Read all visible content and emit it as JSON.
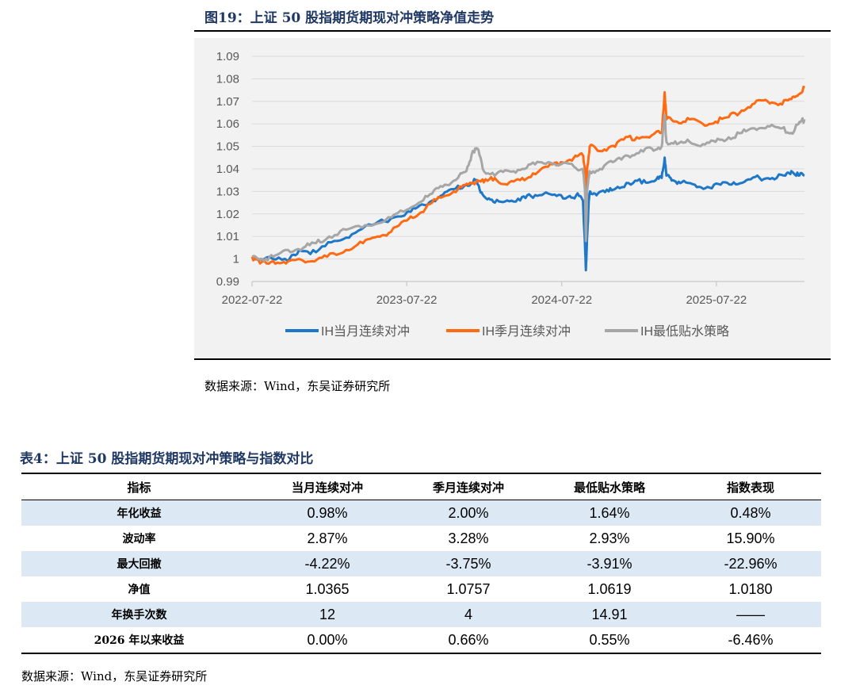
{
  "figure": {
    "title": "图19：上证 50 股指期货期现对冲策略净值走势",
    "source": "数据来源：Wind，东吴证券研究所"
  },
  "chart_data": {
    "type": "line",
    "x_ticks": [
      "2022-07-22",
      "2023-07-22",
      "2024-07-22",
      "2025-07-22"
    ],
    "x_range": [
      "2022-07-22",
      "2026-02-15"
    ],
    "y_ticks": [
      "0.99",
      "1",
      "1.01",
      "1.02",
      "1.03",
      "1.04",
      "1.05",
      "1.06",
      "1.07",
      "1.08",
      "1.09"
    ],
    "ylim": [
      0.99,
      1.09
    ],
    "grid": true,
    "legend_position": "bottom",
    "series": [
      {
        "name": "IH当月连续对冲",
        "color": "#1f77c8",
        "points": [
          [
            "2022-07-22",
            1.0
          ],
          [
            "2022-09-01",
            1.001
          ],
          [
            "2022-10-15",
            0.999
          ],
          [
            "2022-11-10",
            1.004
          ],
          [
            "2022-12-20",
            1.003
          ],
          [
            "2023-02-01",
            1.008
          ],
          [
            "2023-03-15",
            1.011
          ],
          [
            "2023-05-01",
            1.015
          ],
          [
            "2023-06-15",
            1.018
          ],
          [
            "2023-08-01",
            1.021
          ],
          [
            "2023-09-01",
            1.024
          ],
          [
            "2023-10-10",
            1.028
          ],
          [
            "2023-11-10",
            1.031
          ],
          [
            "2023-12-10",
            1.033
          ],
          [
            "2024-01-01",
            1.035
          ],
          [
            "2024-01-10",
            1.031
          ],
          [
            "2024-01-25",
            1.027
          ],
          [
            "2024-02-15",
            1.025
          ],
          [
            "2024-03-15",
            1.026
          ],
          [
            "2024-04-15",
            1.026
          ],
          [
            "2024-05-10",
            1.028
          ],
          [
            "2024-06-10",
            1.029
          ],
          [
            "2024-07-10",
            1.028
          ],
          [
            "2024-08-10",
            1.028
          ],
          [
            "2024-09-01",
            1.028
          ],
          [
            "2024-09-10",
            1.026
          ],
          [
            "2024-09-14",
            1.01
          ],
          [
            "2024-09-17",
            0.995
          ],
          [
            "2024-09-20",
            1.01
          ],
          [
            "2024-09-24",
            1.026
          ],
          [
            "2024-09-27",
            1.03
          ],
          [
            "2024-10-15",
            1.029
          ],
          [
            "2024-11-10",
            1.03
          ],
          [
            "2024-12-01",
            1.032
          ],
          [
            "2025-01-01",
            1.033
          ],
          [
            "2025-02-01",
            1.035
          ],
          [
            "2025-03-01",
            1.035
          ],
          [
            "2025-03-15",
            1.036
          ],
          [
            "2025-03-22",
            1.045
          ],
          [
            "2025-03-26",
            1.037
          ],
          [
            "2025-04-10",
            1.035
          ],
          [
            "2025-05-01",
            1.034
          ],
          [
            "2025-06-01",
            1.033
          ],
          [
            "2025-07-01",
            1.032
          ],
          [
            "2025-08-01",
            1.033
          ],
          [
            "2025-09-01",
            1.034
          ],
          [
            "2025-10-01",
            1.035
          ],
          [
            "2025-11-01",
            1.036
          ],
          [
            "2025-12-01",
            1.036
          ],
          [
            "2026-01-01",
            1.037
          ],
          [
            "2026-01-15",
            1.039
          ],
          [
            "2026-02-01",
            1.037
          ],
          [
            "2026-02-15",
            1.037
          ]
        ]
      },
      {
        "name": "IH季月连续对冲",
        "color": "#ff6a13",
        "points": [
          [
            "2022-07-22",
            1.001
          ],
          [
            "2022-08-10",
            0.998
          ],
          [
            "2022-09-10",
            0.999
          ],
          [
            "2022-10-10",
            0.998
          ],
          [
            "2022-11-10",
            1.0
          ],
          [
            "2022-12-10",
            0.999
          ],
          [
            "2023-01-15",
            1.001
          ],
          [
            "2023-03-01",
            1.004
          ],
          [
            "2023-04-10",
            1.007
          ],
          [
            "2023-05-15",
            1.01
          ],
          [
            "2023-06-15",
            1.012
          ],
          [
            "2023-07-22",
            1.017
          ],
          [
            "2023-08-20",
            1.02
          ],
          [
            "2023-09-20",
            1.025
          ],
          [
            "2023-10-20",
            1.028
          ],
          [
            "2023-11-20",
            1.031
          ],
          [
            "2023-12-15",
            1.033
          ],
          [
            "2024-01-05",
            1.035
          ],
          [
            "2024-01-20",
            1.034
          ],
          [
            "2024-02-15",
            1.036
          ],
          [
            "2024-03-15",
            1.033
          ],
          [
            "2024-04-15",
            1.035
          ],
          [
            "2024-05-15",
            1.038
          ],
          [
            "2024-06-20",
            1.041
          ],
          [
            "2024-07-20",
            1.043
          ],
          [
            "2024-08-20",
            1.045
          ],
          [
            "2024-09-10",
            1.046
          ],
          [
            "2024-09-15",
            1.04
          ],
          [
            "2024-09-17",
            1.01
          ],
          [
            "2024-09-20",
            1.04
          ],
          [
            "2024-09-26",
            1.05
          ],
          [
            "2024-10-15",
            1.048
          ],
          [
            "2024-11-15",
            1.05
          ],
          [
            "2024-12-15",
            1.053
          ],
          [
            "2025-01-15",
            1.054
          ],
          [
            "2025-02-20",
            1.055
          ],
          [
            "2025-03-15",
            1.056
          ],
          [
            "2025-03-22",
            1.074
          ],
          [
            "2025-03-26",
            1.062
          ],
          [
            "2025-04-20",
            1.061
          ],
          [
            "2025-05-20",
            1.062
          ],
          [
            "2025-06-20",
            1.06
          ],
          [
            "2025-07-20",
            1.061
          ],
          [
            "2025-08-20",
            1.063
          ],
          [
            "2025-09-20",
            1.066
          ],
          [
            "2025-10-20",
            1.069
          ],
          [
            "2025-11-20",
            1.07
          ],
          [
            "2025-12-20",
            1.069
          ],
          [
            "2026-01-15",
            1.071
          ],
          [
            "2026-02-01",
            1.073
          ],
          [
            "2026-02-15",
            1.076
          ]
        ]
      },
      {
        "name": "IH最低贴水策略",
        "color": "#a6a6a6",
        "points": [
          [
            "2022-07-22",
            1.001
          ],
          [
            "2022-08-15",
            1.0
          ],
          [
            "2022-09-10",
            1.001
          ],
          [
            "2022-10-15",
            1.004
          ],
          [
            "2022-11-20",
            1.005
          ],
          [
            "2022-12-20",
            1.007
          ],
          [
            "2023-01-20",
            1.01
          ],
          [
            "2023-03-01",
            1.013
          ],
          [
            "2023-04-15",
            1.015
          ],
          [
            "2023-06-01",
            1.017
          ],
          [
            "2023-07-15",
            1.021
          ],
          [
            "2023-08-20",
            1.025
          ],
          [
            "2023-09-20",
            1.029
          ],
          [
            "2023-10-20",
            1.033
          ],
          [
            "2023-11-20",
            1.036
          ],
          [
            "2023-12-10",
            1.039
          ],
          [
            "2023-12-25",
            1.048
          ],
          [
            "2024-01-05",
            1.049
          ],
          [
            "2024-01-20",
            1.039
          ],
          [
            "2024-02-20",
            1.038
          ],
          [
            "2024-03-20",
            1.039
          ],
          [
            "2024-04-20",
            1.04
          ],
          [
            "2024-05-20",
            1.042
          ],
          [
            "2024-06-20",
            1.043
          ],
          [
            "2024-07-20",
            1.042
          ],
          [
            "2024-08-20",
            1.041
          ],
          [
            "2024-09-10",
            1.04
          ],
          [
            "2024-09-15",
            1.03
          ],
          [
            "2024-09-17",
            1.008
          ],
          [
            "2024-09-20",
            1.03
          ],
          [
            "2024-09-26",
            1.039
          ],
          [
            "2024-10-20",
            1.04
          ],
          [
            "2024-11-20",
            1.043
          ],
          [
            "2024-12-20",
            1.046
          ],
          [
            "2025-01-20",
            1.047
          ],
          [
            "2025-02-20",
            1.049
          ],
          [
            "2025-03-15",
            1.05
          ],
          [
            "2025-03-22",
            1.064
          ],
          [
            "2025-03-26",
            1.052
          ],
          [
            "2025-04-20",
            1.051
          ],
          [
            "2025-05-20",
            1.052
          ],
          [
            "2025-06-20",
            1.051
          ],
          [
            "2025-07-20",
            1.052
          ],
          [
            "2025-08-20",
            1.054
          ],
          [
            "2025-09-20",
            1.056
          ],
          [
            "2025-10-20",
            1.058
          ],
          [
            "2025-11-20",
            1.059
          ],
          [
            "2025-12-20",
            1.058
          ],
          [
            "2026-01-15",
            1.056
          ],
          [
            "2026-02-01",
            1.06
          ],
          [
            "2026-02-15",
            1.062
          ]
        ]
      }
    ]
  },
  "table": {
    "title": "表4：上证 50 股指期货期现对冲策略与指数对比",
    "headers": [
      "指标",
      "当月连续对冲",
      "季月连续对冲",
      "最低贴水策略",
      "指数表现"
    ],
    "rows": [
      {
        "label": "年化收益",
        "values": [
          "0.98%",
          "2.00%",
          "1.64%",
          "0.48%"
        ]
      },
      {
        "label": "波动率",
        "values": [
          "2.87%",
          "3.28%",
          "2.93%",
          "15.90%"
        ]
      },
      {
        "label": "最大回撤",
        "values": [
          "-4.22%",
          "-3.75%",
          "-3.91%",
          "-22.96%"
        ]
      },
      {
        "label": "净值",
        "values": [
          "1.0365",
          "1.0757",
          "1.0619",
          "1.0180"
        ]
      },
      {
        "label": "年换手次数",
        "values": [
          "12",
          "4",
          "14.91",
          "——"
        ]
      },
      {
        "label": "2026 年以来收益",
        "values": [
          "0.00%",
          "0.66%",
          "0.55%",
          "-6.46%"
        ]
      }
    ],
    "shade_color": "#dce9f5",
    "source": "数据来源：Wind，东吴证券研究所"
  }
}
